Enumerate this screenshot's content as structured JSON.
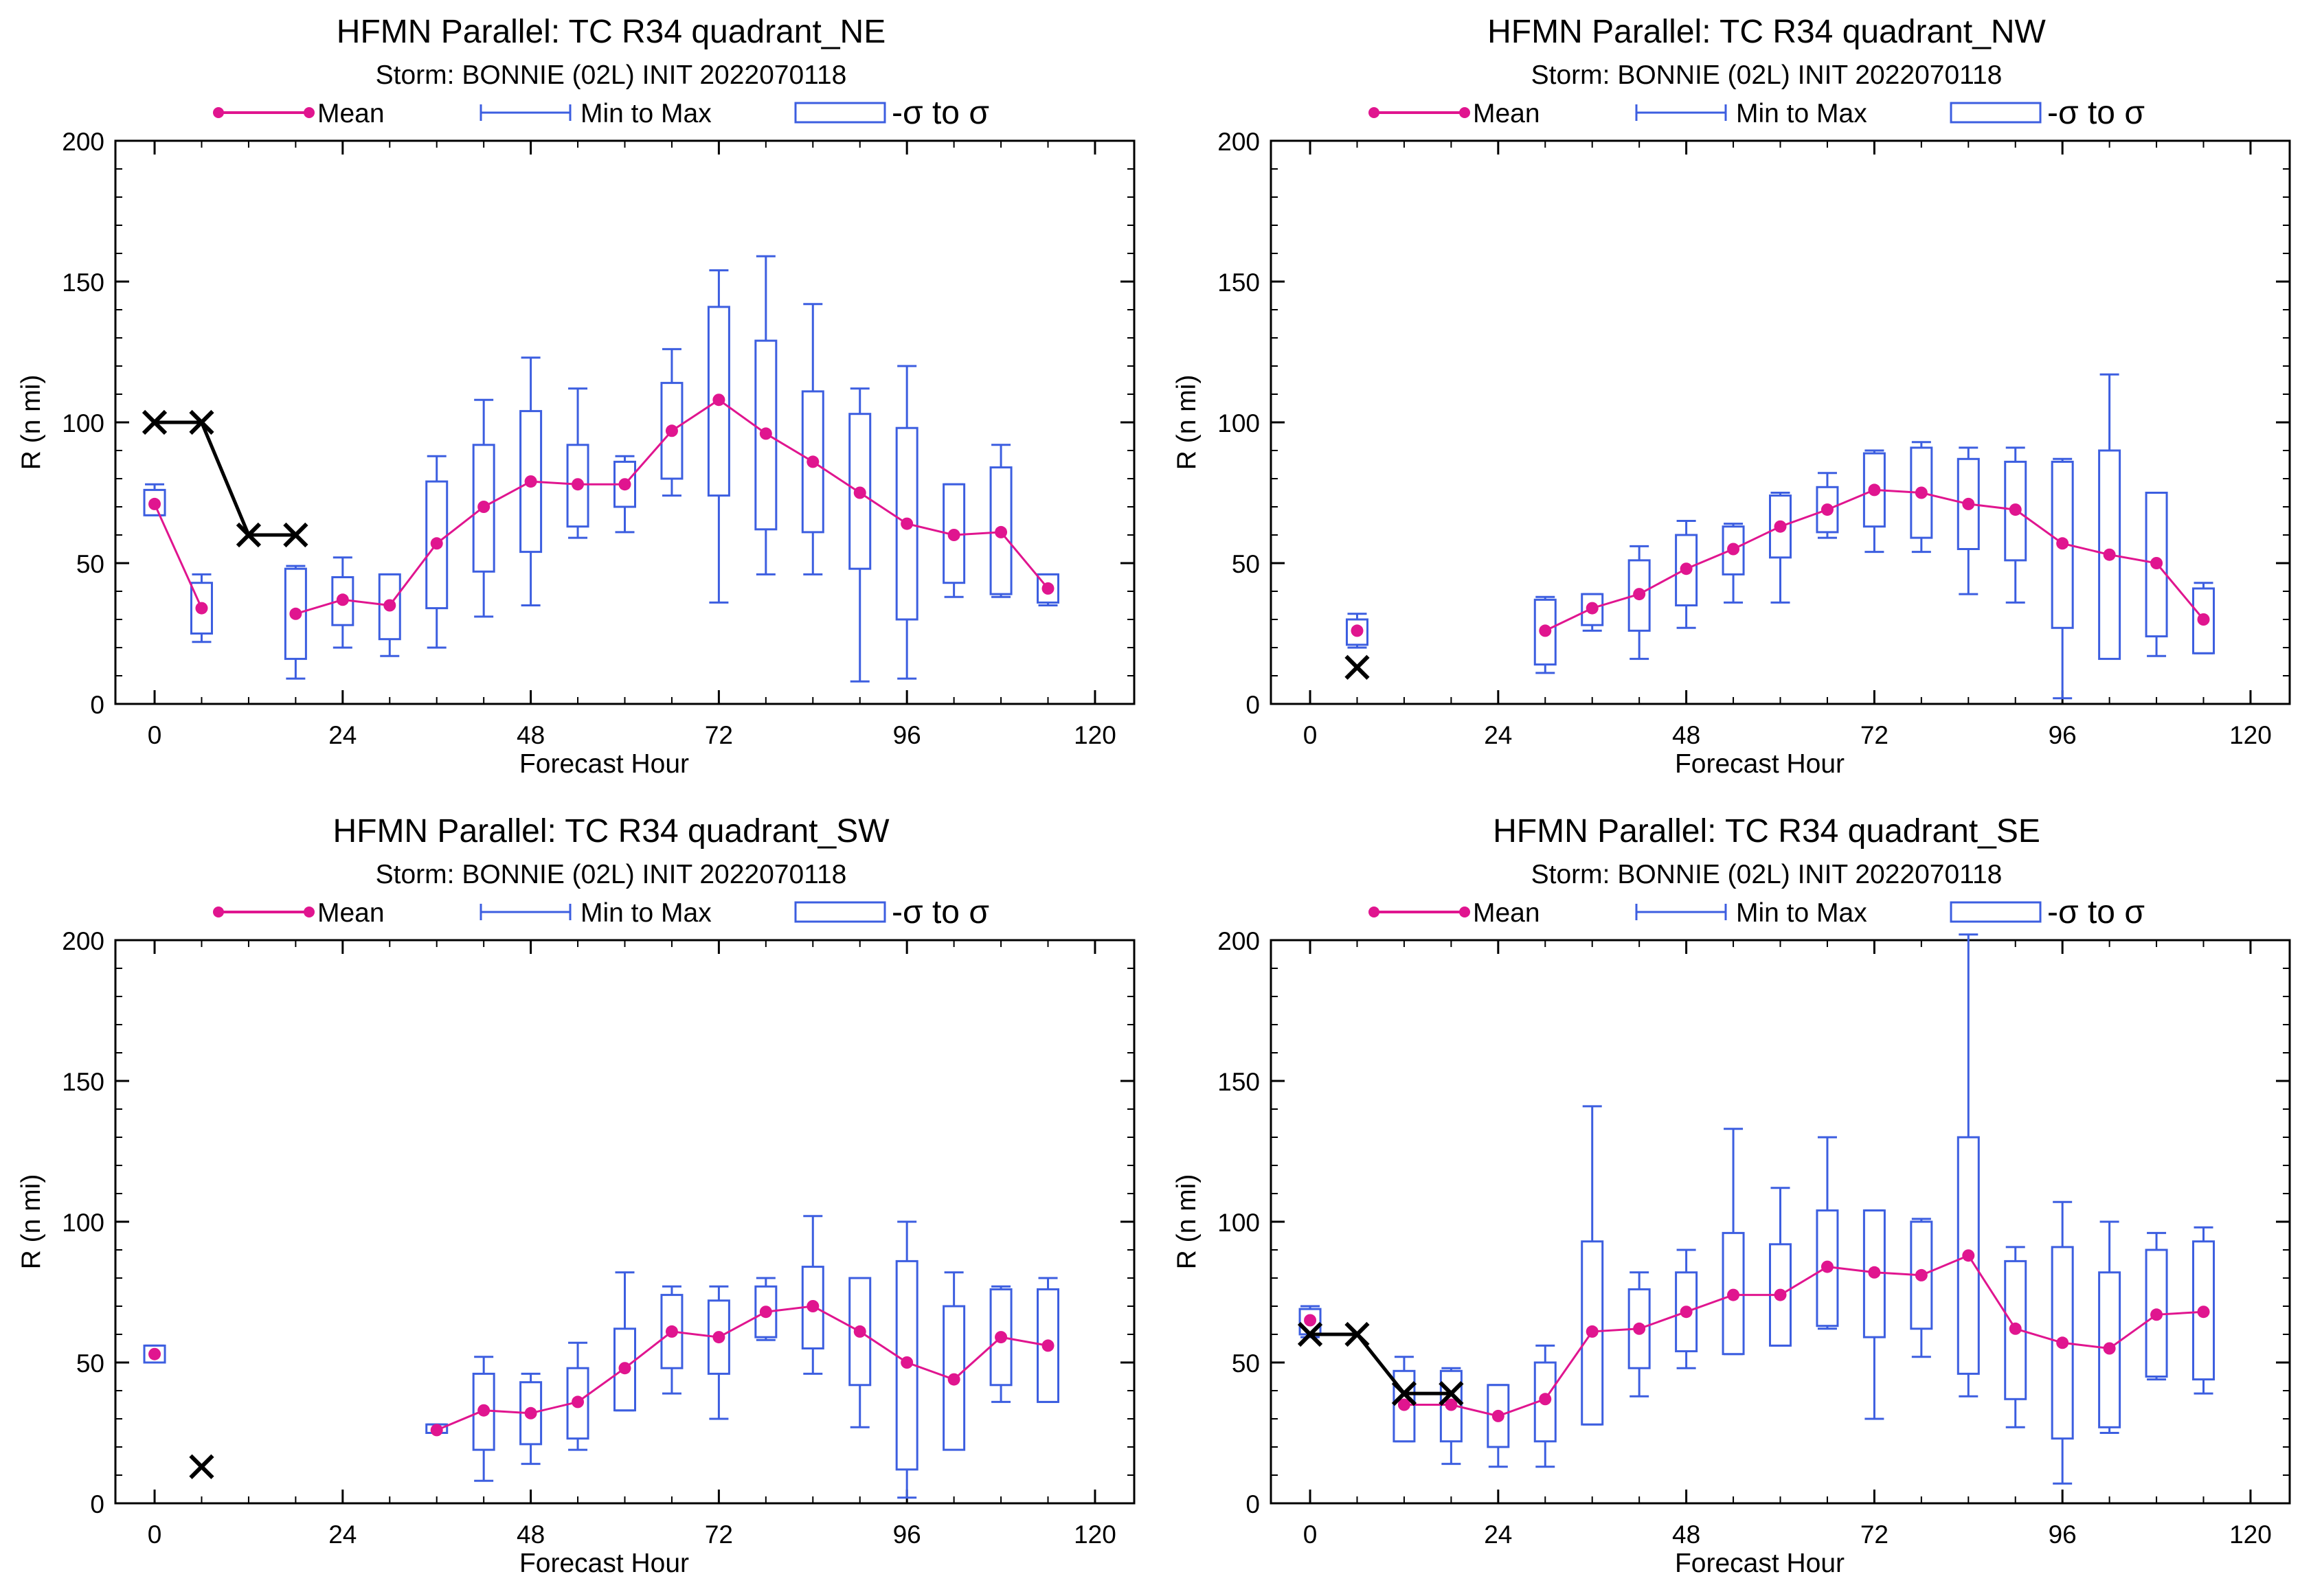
{
  "colors": {
    "mean": "#e0158f",
    "range": "#3c5ee0",
    "obs": "#000000",
    "axis": "#000000"
  },
  "legend": {
    "mean": "Mean",
    "minmax": "Min to Max",
    "sigma": "-σ to σ"
  },
  "chart_data": [
    {
      "type": "box",
      "title": "HFMN Parallel: TC  R34 quadrant_NE",
      "subtitle": "Storm: BONNIE (02L) INIT 2022070118",
      "xlabel": "Forecast Hour",
      "ylabel": "R (n mi)",
      "xlim": [
        -5,
        125
      ],
      "ylim": [
        0,
        200
      ],
      "xticks": [
        0,
        24,
        48,
        72,
        96,
        120
      ],
      "yticks": [
        0,
        50,
        100,
        150,
        200
      ],
      "grid": false,
      "legend_position": "top",
      "boxes": [
        {
          "x": 0,
          "mean": 71,
          "sd_lo": 67,
          "sd_hi": 76,
          "min": 67,
          "max": 78
        },
        {
          "x": 6,
          "mean": 34,
          "sd_lo": 25,
          "sd_hi": 43,
          "min": 22,
          "max": 46
        },
        {
          "x": 18,
          "mean": 32,
          "sd_lo": 16,
          "sd_hi": 48,
          "min": 9,
          "max": 49
        },
        {
          "x": 24,
          "mean": 37,
          "sd_lo": 28,
          "sd_hi": 45,
          "min": 20,
          "max": 52
        },
        {
          "x": 30,
          "mean": 35,
          "sd_lo": 23,
          "sd_hi": 46,
          "min": 17,
          "max": 46
        },
        {
          "x": 36,
          "mean": 57,
          "sd_lo": 34,
          "sd_hi": 79,
          "min": 20,
          "max": 88
        },
        {
          "x": 42,
          "mean": 70,
          "sd_lo": 47,
          "sd_hi": 92,
          "min": 31,
          "max": 108
        },
        {
          "x": 48,
          "mean": 79,
          "sd_lo": 54,
          "sd_hi": 104,
          "min": 35,
          "max": 123
        },
        {
          "x": 54,
          "mean": 78,
          "sd_lo": 63,
          "sd_hi": 92,
          "min": 59,
          "max": 112
        },
        {
          "x": 60,
          "mean": 78,
          "sd_lo": 70,
          "sd_hi": 86,
          "min": 61,
          "max": 88
        },
        {
          "x": 66,
          "mean": 97,
          "sd_lo": 80,
          "sd_hi": 114,
          "min": 74,
          "max": 126
        },
        {
          "x": 72,
          "mean": 108,
          "sd_lo": 74,
          "sd_hi": 141,
          "min": 36,
          "max": 154
        },
        {
          "x": 78,
          "mean": 96,
          "sd_lo": 62,
          "sd_hi": 129,
          "min": 46,
          "max": 159
        },
        {
          "x": 84,
          "mean": 86,
          "sd_lo": 61,
          "sd_hi": 111,
          "min": 46,
          "max": 142
        },
        {
          "x": 90,
          "mean": 75,
          "sd_lo": 48,
          "sd_hi": 103,
          "min": 8,
          "max": 112
        },
        {
          "x": 96,
          "mean": 64,
          "sd_lo": 30,
          "sd_hi": 98,
          "min": 9,
          "max": 120
        },
        {
          "x": 102,
          "mean": 60,
          "sd_lo": 43,
          "sd_hi": 78,
          "min": 38,
          "max": 78
        },
        {
          "x": 108,
          "mean": 61,
          "sd_lo": 39,
          "sd_hi": 84,
          "min": 38,
          "max": 92
        },
        {
          "x": 114,
          "mean": 41,
          "sd_lo": 36,
          "sd_hi": 46,
          "min": 35,
          "max": 46
        }
      ],
      "observed": [
        {
          "x": 0,
          "y": 100
        },
        {
          "x": 6,
          "y": 100
        },
        {
          "x": 12,
          "y": 60
        },
        {
          "x": 18,
          "y": 60
        }
      ]
    },
    {
      "type": "box",
      "title": "HFMN Parallel: TC  R34 quadrant_NW",
      "subtitle": "Storm: BONNIE (02L) INIT 2022070118",
      "xlabel": "Forecast Hour",
      "ylabel": "R (n mi)",
      "xlim": [
        -5,
        125
      ],
      "ylim": [
        0,
        200
      ],
      "xticks": [
        0,
        24,
        48,
        72,
        96,
        120
      ],
      "yticks": [
        0,
        50,
        100,
        150,
        200
      ],
      "grid": false,
      "legend_position": "top",
      "boxes": [
        {
          "x": 6,
          "mean": 26,
          "sd_lo": 21,
          "sd_hi": 30,
          "min": 20,
          "max": 32
        },
        {
          "x": 30,
          "mean": 26,
          "sd_lo": 14,
          "sd_hi": 37,
          "min": 11,
          "max": 38
        },
        {
          "x": 36,
          "mean": 34,
          "sd_lo": 28,
          "sd_hi": 39,
          "min": 26,
          "max": 39
        },
        {
          "x": 42,
          "mean": 39,
          "sd_lo": 26,
          "sd_hi": 51,
          "min": 16,
          "max": 56
        },
        {
          "x": 48,
          "mean": 48,
          "sd_lo": 35,
          "sd_hi": 60,
          "min": 27,
          "max": 65
        },
        {
          "x": 54,
          "mean": 55,
          "sd_lo": 46,
          "sd_hi": 63,
          "min": 36,
          "max": 64
        },
        {
          "x": 60,
          "mean": 63,
          "sd_lo": 52,
          "sd_hi": 74,
          "min": 36,
          "max": 75
        },
        {
          "x": 66,
          "mean": 69,
          "sd_lo": 61,
          "sd_hi": 77,
          "min": 59,
          "max": 82
        },
        {
          "x": 72,
          "mean": 76,
          "sd_lo": 63,
          "sd_hi": 89,
          "min": 54,
          "max": 90
        },
        {
          "x": 78,
          "mean": 75,
          "sd_lo": 59,
          "sd_hi": 91,
          "min": 54,
          "max": 93
        },
        {
          "x": 84,
          "mean": 71,
          "sd_lo": 55,
          "sd_hi": 87,
          "min": 39,
          "max": 91
        },
        {
          "x": 90,
          "mean": 69,
          "sd_lo": 51,
          "sd_hi": 86,
          "min": 36,
          "max": 91
        },
        {
          "x": 96,
          "mean": 57,
          "sd_lo": 27,
          "sd_hi": 86,
          "min": 2,
          "max": 87
        },
        {
          "x": 102,
          "mean": 53,
          "sd_lo": 16,
          "sd_hi": 90,
          "min": 21,
          "max": 117
        },
        {
          "x": 108,
          "mean": 50,
          "sd_lo": 24,
          "sd_hi": 75,
          "min": 17,
          "max": 72
        },
        {
          "x": 114,
          "mean": 30,
          "sd_lo": 18,
          "sd_hi": 41,
          "min": 18,
          "max": 43
        }
      ],
      "observed": [
        {
          "x": 6,
          "y": 13
        }
      ]
    },
    {
      "type": "box",
      "title": "HFMN Parallel: TC  R34 quadrant_SW",
      "subtitle": "Storm: BONNIE (02L) INIT 2022070118",
      "xlabel": "Forecast Hour",
      "ylabel": "R (n mi)",
      "xlim": [
        -5,
        125
      ],
      "ylim": [
        0,
        200
      ],
      "xticks": [
        0,
        24,
        48,
        72,
        96,
        120
      ],
      "yticks": [
        0,
        50,
        100,
        150,
        200
      ],
      "grid": false,
      "legend_position": "top",
      "boxes": [
        {
          "x": 0,
          "mean": 53,
          "sd_lo": 50,
          "sd_hi": 56,
          "min": 50,
          "max": 56
        },
        {
          "x": 36,
          "mean": 26,
          "sd_lo": 25,
          "sd_hi": 28,
          "min": 25,
          "max": 28
        },
        {
          "x": 42,
          "mean": 33,
          "sd_lo": 19,
          "sd_hi": 46,
          "min": 8,
          "max": 52
        },
        {
          "x": 48,
          "mean": 32,
          "sd_lo": 21,
          "sd_hi": 43,
          "min": 14,
          "max": 46
        },
        {
          "x": 54,
          "mean": 36,
          "sd_lo": 23,
          "sd_hi": 48,
          "min": 19,
          "max": 57
        },
        {
          "x": 60,
          "mean": 48,
          "sd_lo": 33,
          "sd_hi": 62,
          "min": 33,
          "max": 82
        },
        {
          "x": 66,
          "mean": 61,
          "sd_lo": 48,
          "sd_hi": 74,
          "min": 39,
          "max": 77
        },
        {
          "x": 72,
          "mean": 59,
          "sd_lo": 46,
          "sd_hi": 72,
          "min": 30,
          "max": 77
        },
        {
          "x": 78,
          "mean": 68,
          "sd_lo": 59,
          "sd_hi": 77,
          "min": 58,
          "max": 80
        },
        {
          "x": 84,
          "mean": 70,
          "sd_lo": 55,
          "sd_hi": 84,
          "min": 46,
          "max": 102
        },
        {
          "x": 90,
          "mean": 61,
          "sd_lo": 42,
          "sd_hi": 80,
          "min": 27,
          "max": 80
        },
        {
          "x": 96,
          "mean": 50,
          "sd_lo": 12,
          "sd_hi": 86,
          "min": 2,
          "max": 100
        },
        {
          "x": 102,
          "mean": 44,
          "sd_lo": 19,
          "sd_hi": 70,
          "min": 20,
          "max": 82
        },
        {
          "x": 108,
          "mean": 59,
          "sd_lo": 42,
          "sd_hi": 76,
          "min": 36,
          "max": 77
        },
        {
          "x": 114,
          "mean": 56,
          "sd_lo": 36,
          "sd_hi": 76,
          "min": 36,
          "max": 80
        }
      ],
      "observed": [
        {
          "x": 6,
          "y": 13
        }
      ]
    },
    {
      "type": "box",
      "title": "HFMN Parallel: TC  R34 quadrant_SE",
      "subtitle": "Storm: BONNIE (02L) INIT 2022070118",
      "xlabel": "Forecast Hour",
      "ylabel": "R (n mi)",
      "xlim": [
        -5,
        125
      ],
      "ylim": [
        0,
        200
      ],
      "xticks": [
        0,
        24,
        48,
        72,
        96,
        120
      ],
      "yticks": [
        0,
        50,
        100,
        150,
        200
      ],
      "grid": false,
      "legend_position": "top",
      "boxes": [
        {
          "x": 0,
          "mean": 65,
          "sd_lo": 60,
          "sd_hi": 69,
          "min": 59,
          "max": 70
        },
        {
          "x": 12,
          "mean": 35,
          "sd_lo": 22,
          "sd_hi": 47,
          "min": 22,
          "max": 52
        },
        {
          "x": 18,
          "mean": 35,
          "sd_lo": 22,
          "sd_hi": 47,
          "min": 14,
          "max": 48
        },
        {
          "x": 24,
          "mean": 31,
          "sd_lo": 20,
          "sd_hi": 42,
          "min": 13,
          "max": 42
        },
        {
          "x": 30,
          "mean": 37,
          "sd_lo": 22,
          "sd_hi": 50,
          "min": 13,
          "max": 56
        },
        {
          "x": 36,
          "mean": 61,
          "sd_lo": 28,
          "sd_hi": 93,
          "min": 28,
          "max": 141
        },
        {
          "x": 42,
          "mean": 62,
          "sd_lo": 48,
          "sd_hi": 76,
          "min": 38,
          "max": 82
        },
        {
          "x": 48,
          "mean": 68,
          "sd_lo": 54,
          "sd_hi": 82,
          "min": 48,
          "max": 90
        },
        {
          "x": 54,
          "mean": 74,
          "sd_lo": 53,
          "sd_hi": 96,
          "min": 53,
          "max": 133
        },
        {
          "x": 60,
          "mean": 74,
          "sd_lo": 56,
          "sd_hi": 92,
          "min": 56,
          "max": 112
        },
        {
          "x": 66,
          "mean": 84,
          "sd_lo": 63,
          "sd_hi": 104,
          "min": 62,
          "max": 130
        },
        {
          "x": 72,
          "mean": 82,
          "sd_lo": 59,
          "sd_hi": 104,
          "min": 30,
          "max": 104
        },
        {
          "x": 78,
          "mean": 81,
          "sd_lo": 62,
          "sd_hi": 100,
          "min": 52,
          "max": 101
        },
        {
          "x": 84,
          "mean": 88,
          "sd_lo": 46,
          "sd_hi": 130,
          "min": 38,
          "max": 202
        },
        {
          "x": 90,
          "mean": 62,
          "sd_lo": 37,
          "sd_hi": 86,
          "min": 27,
          "max": 91
        },
        {
          "x": 96,
          "mean": 57,
          "sd_lo": 23,
          "sd_hi": 91,
          "min": 7,
          "max": 107
        },
        {
          "x": 102,
          "mean": 55,
          "sd_lo": 27,
          "sd_hi": 82,
          "min": 25,
          "max": 100
        },
        {
          "x": 108,
          "mean": 67,
          "sd_lo": 45,
          "sd_hi": 90,
          "min": 44,
          "max": 96
        },
        {
          "x": 114,
          "mean": 68,
          "sd_lo": 44,
          "sd_hi": 93,
          "min": 39,
          "max": 98
        }
      ],
      "observed": [
        {
          "x": 0,
          "y": 60
        },
        {
          "x": 6,
          "y": 60
        },
        {
          "x": 12,
          "y": 39
        },
        {
          "x": 18,
          "y": 39
        }
      ]
    }
  ]
}
